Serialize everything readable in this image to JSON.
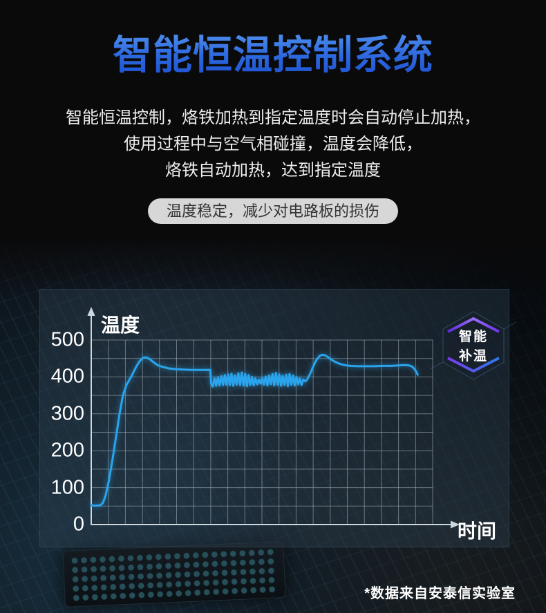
{
  "title": "智能恒温控制系统",
  "description": {
    "lines": [
      "智能恒温控制，烙铁加热到指定温度时会自动停止加热，",
      "使用过程中与空气相碰撞，温度会降低，",
      "烙铁自动加热，达到指定温度"
    ]
  },
  "pill_label": "温度稳定，减少对电路板的损伤",
  "footnote": "*数据来自安泰信实验室",
  "badge": {
    "line1": "智能",
    "line2": "补温"
  },
  "colors": {
    "title_gradient_top": "#5d9df2",
    "title_gradient_bottom": "#1c4fd0",
    "curve": "#2aa4ec",
    "pill_bg": "#d7d7d7",
    "badge_purple": "#7a3bf2",
    "badge_blue": "#2a7bea"
  },
  "chart_data": {
    "type": "line",
    "title": "",
    "xlabel": "时间",
    "ylabel": "温度",
    "yticks": [
      "500",
      "400",
      "300",
      "200",
      "100",
      "0"
    ],
    "ylim": [
      0,
      520
    ],
    "grid": true,
    "grid_cols": 20,
    "grid_row_step": 50,
    "legend": "none",
    "line_color": "#2aa4ec",
    "series": [
      {
        "points": [
          [
            0.0,
            52
          ],
          [
            0.014,
            51
          ],
          [
            0.026,
            52
          ],
          [
            0.034,
            58
          ],
          [
            0.042,
            78
          ],
          [
            0.052,
            120
          ],
          [
            0.063,
            180
          ],
          [
            0.073,
            240
          ],
          [
            0.083,
            300
          ],
          [
            0.093,
            350
          ],
          [
            0.103,
            378
          ],
          [
            0.119,
            404
          ],
          [
            0.133,
            430
          ],
          [
            0.143,
            444
          ],
          [
            0.152,
            452
          ],
          [
            0.16,
            453
          ],
          [
            0.17,
            449
          ],
          [
            0.181,
            441
          ],
          [
            0.194,
            432
          ],
          [
            0.21,
            427
          ],
          [
            0.228,
            423
          ],
          [
            0.248,
            421
          ],
          [
            0.27,
            420
          ],
          [
            0.295,
            419
          ],
          [
            0.32,
            419
          ],
          [
            0.34,
            419
          ],
          [
            0.349,
            419
          ],
          [
            0.351,
            382
          ],
          [
            0.356,
            374
          ],
          [
            0.361,
            396
          ],
          [
            0.366,
            376
          ],
          [
            0.371,
            399
          ],
          [
            0.376,
            377
          ],
          [
            0.381,
            402
          ],
          [
            0.386,
            378
          ],
          [
            0.391,
            405
          ],
          [
            0.396,
            379
          ],
          [
            0.401,
            407
          ],
          [
            0.406,
            378
          ],
          [
            0.411,
            409
          ],
          [
            0.416,
            376
          ],
          [
            0.421,
            404
          ],
          [
            0.426,
            379
          ],
          [
            0.431,
            410
          ],
          [
            0.436,
            378
          ],
          [
            0.441,
            412
          ],
          [
            0.446,
            377
          ],
          [
            0.451,
            408
          ],
          [
            0.456,
            375
          ],
          [
            0.461,
            405
          ],
          [
            0.466,
            378
          ],
          [
            0.471,
            400
          ],
          [
            0.476,
            377
          ],
          [
            0.481,
            396
          ],
          [
            0.486,
            380
          ],
          [
            0.491,
            393
          ],
          [
            0.496,
            382
          ],
          [
            0.501,
            397
          ],
          [
            0.506,
            379
          ],
          [
            0.511,
            401
          ],
          [
            0.516,
            377
          ],
          [
            0.521,
            404
          ],
          [
            0.526,
            380
          ],
          [
            0.531,
            408
          ],
          [
            0.536,
            377
          ],
          [
            0.541,
            411
          ],
          [
            0.546,
            379
          ],
          [
            0.551,
            407
          ],
          [
            0.556,
            376
          ],
          [
            0.561,
            403
          ],
          [
            0.566,
            378
          ],
          [
            0.571,
            406
          ],
          [
            0.576,
            375
          ],
          [
            0.581,
            408
          ],
          [
            0.586,
            379
          ],
          [
            0.591,
            404
          ],
          [
            0.596,
            377
          ],
          [
            0.601,
            400
          ],
          [
            0.606,
            380
          ],
          [
            0.611,
            396
          ],
          [
            0.616,
            378
          ],
          [
            0.621,
            393
          ],
          [
            0.627,
            388
          ],
          [
            0.633,
            394
          ],
          [
            0.641,
            408
          ],
          [
            0.65,
            428
          ],
          [
            0.659,
            445
          ],
          [
            0.668,
            456
          ],
          [
            0.676,
            460
          ],
          [
            0.684,
            459
          ],
          [
            0.693,
            454
          ],
          [
            0.703,
            447
          ],
          [
            0.714,
            441
          ],
          [
            0.727,
            436
          ],
          [
            0.741,
            432
          ],
          [
            0.758,
            430
          ],
          [
            0.78,
            429
          ],
          [
            0.805,
            429
          ],
          [
            0.83,
            429
          ],
          [
            0.855,
            430
          ],
          [
            0.88,
            430
          ],
          [
            0.9,
            431
          ],
          [
            0.918,
            432
          ],
          [
            0.931,
            431
          ],
          [
            0.94,
            428
          ],
          [
            0.948,
            420
          ],
          [
            0.953,
            412
          ],
          [
            0.956,
            406
          ]
        ]
      }
    ]
  }
}
